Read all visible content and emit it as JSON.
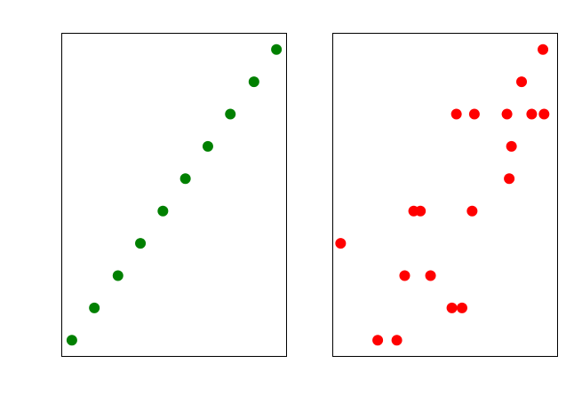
{
  "chart_data": [
    {
      "type": "scatter",
      "grid": false,
      "xlim": [
        0,
        10
      ],
      "ylim": [
        -0.5,
        9.5
      ],
      "series": [
        {
          "color": "#008000",
          "x": [
            0.45,
            1.45,
            2.5,
            3.5,
            4.5,
            5.5,
            6.5,
            7.5,
            8.55,
            9.55
          ],
          "y": [
            0,
            1,
            2,
            3,
            4,
            5,
            6,
            7,
            8,
            9
          ]
        }
      ]
    },
    {
      "type": "scatter",
      "grid": false,
      "xlim": [
        0,
        10
      ],
      "ylim": [
        -0.5,
        9.5
      ],
      "series": [
        {
          "color": "#ff0000",
          "x": [
            2.0,
            2.85,
            5.3,
            5.75,
            3.2,
            4.35,
            0.35,
            3.6,
            3.9,
            6.2,
            7.85,
            7.95,
            5.5,
            6.3,
            7.75,
            8.85,
            9.4,
            8.4,
            9.35
          ],
          "y": [
            0,
            0,
            1,
            1,
            2,
            2,
            3,
            4,
            4,
            4,
            5,
            6,
            7,
            7,
            7,
            7,
            7,
            8,
            9
          ]
        }
      ]
    }
  ]
}
